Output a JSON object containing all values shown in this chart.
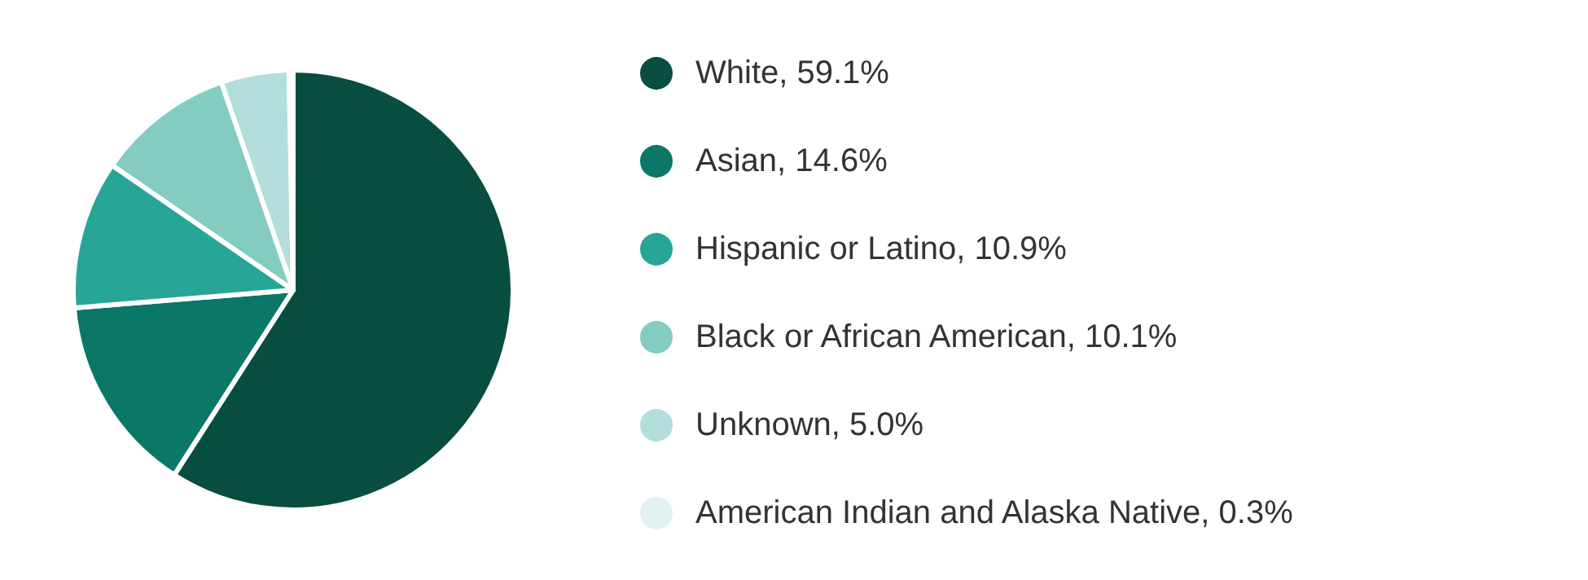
{
  "chart_data": {
    "type": "pie",
    "categories": [
      "White",
      "Asian",
      "Hispanic or Latino",
      "Black or African American",
      "Unknown",
      "American Indian and Alaska Native"
    ],
    "values": [
      59.1,
      14.6,
      10.9,
      10.1,
      5.0,
      0.3
    ],
    "value_labels": [
      "59.1%",
      "14.6%",
      "10.9%",
      "10.1%",
      "5.0%",
      "0.3%"
    ],
    "colors": [
      "#074d40",
      "#0a7767",
      "#27a596",
      "#84cbc2",
      "#b2dedb",
      "#e0f1f0"
    ],
    "legend": "right"
  }
}
